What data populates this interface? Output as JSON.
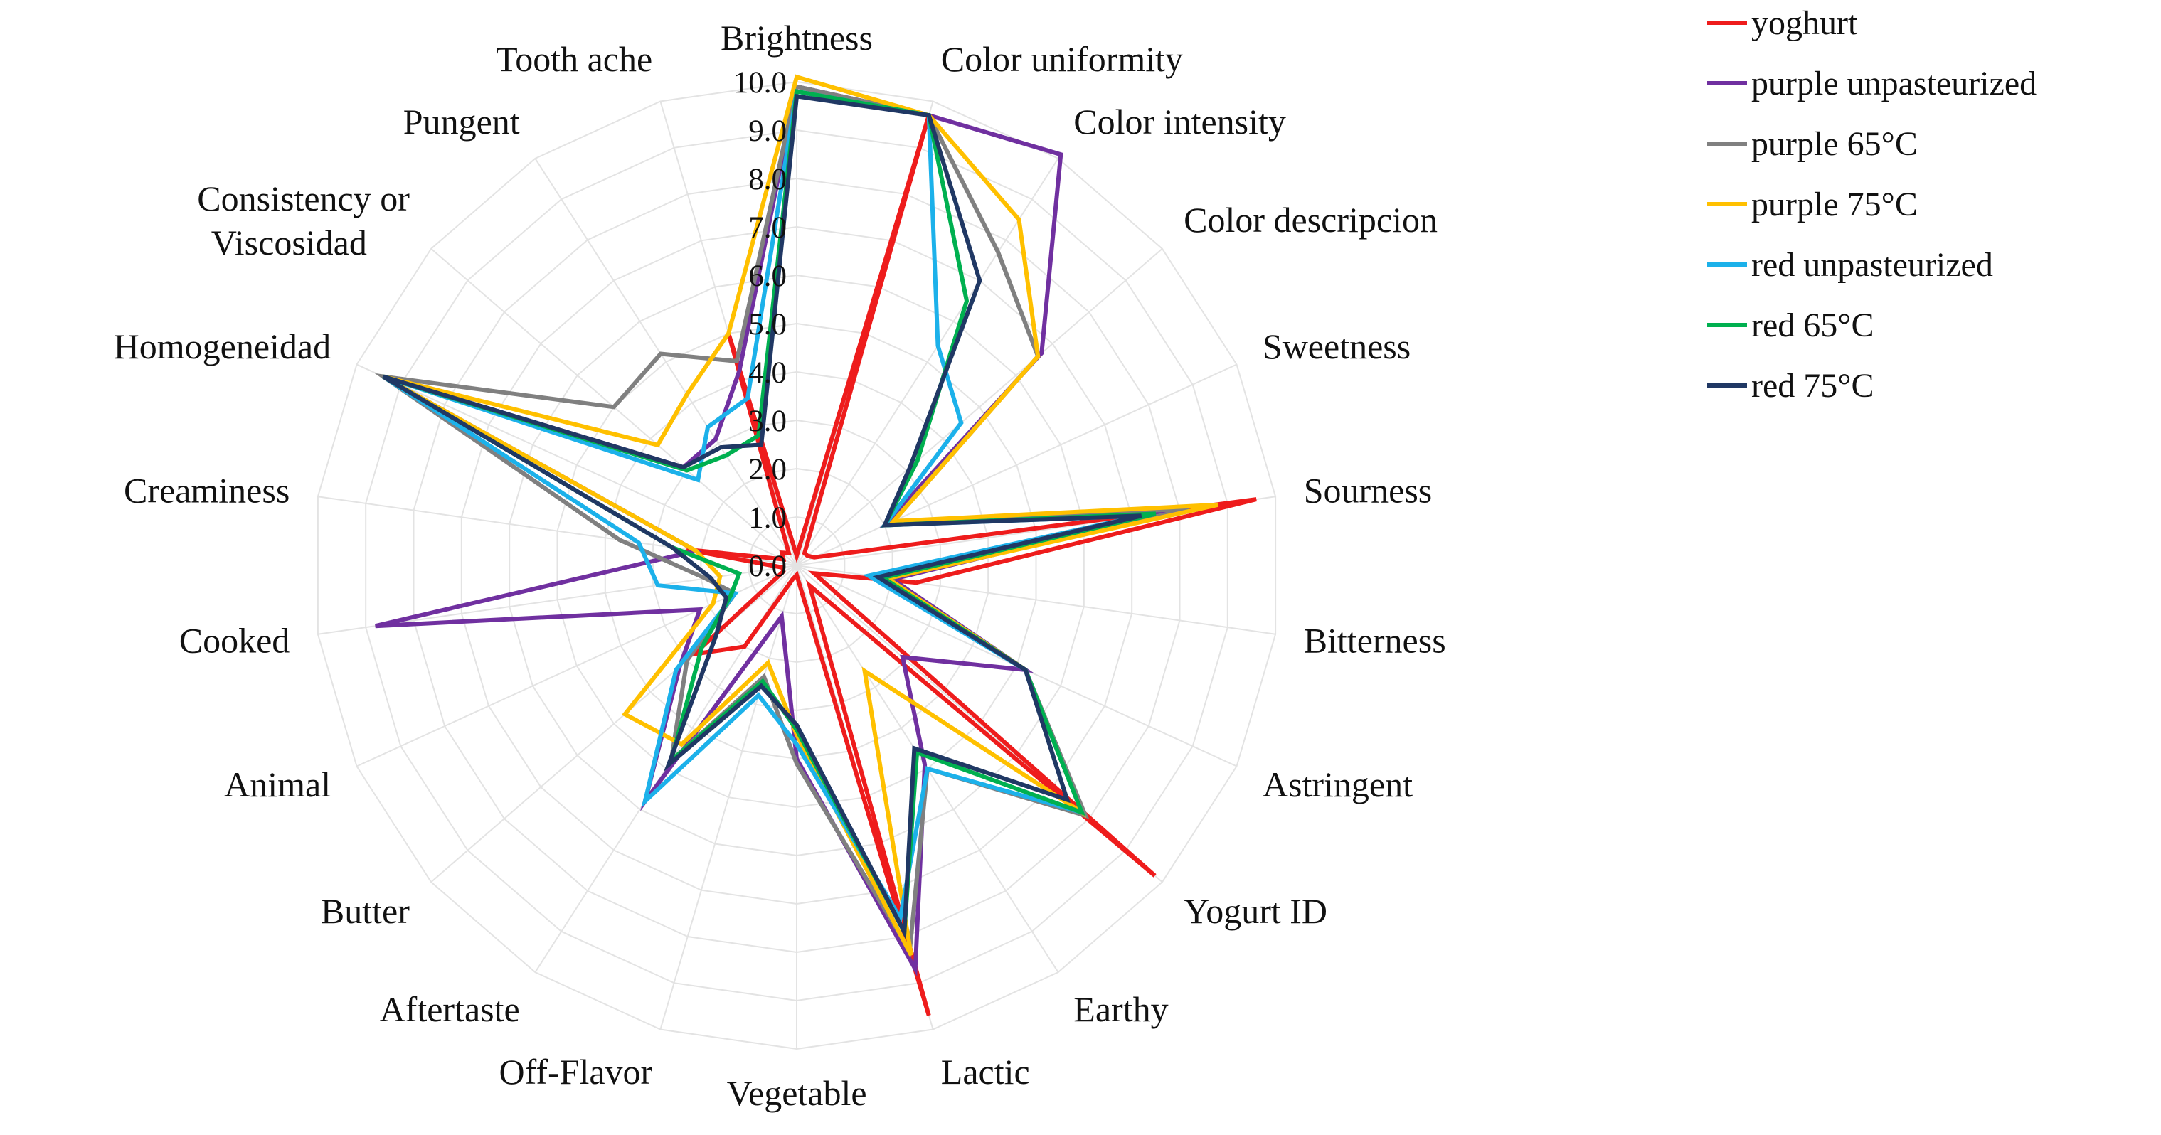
{
  "chart_data": {
    "type": "radar",
    "title": "",
    "r_range": [
      0,
      10
    ],
    "r_ticks": [
      "0.0",
      "1.0",
      "2.0",
      "3.0",
      "4.0",
      "5.0",
      "6.0",
      "7.0",
      "8.0",
      "9.0",
      "10.0"
    ],
    "grid": true,
    "legend_position": "top-right",
    "categories": [
      "Brightness",
      "Color uniformity",
      "Color intensity",
      "Color descripcion",
      "Sweetness",
      "Sourness",
      "Bitterness",
      "Astringent",
      "Yogurt ID",
      "Earthy",
      "Lactic",
      "Vegetable",
      "Off-Flavor",
      "Aftertaste",
      "Butter",
      "Animal",
      "Cooked",
      "Creaminess",
      "Homogeneidad",
      "Consistency or Viscosidad",
      "Pungent",
      "Tooth ache"
    ],
    "series": [
      {
        "name": "yoghurt",
        "color": "#ee1c1c",
        "values": [
          0.2,
          9.7,
          0.3,
          0.3,
          0.4,
          9.6,
          2.5,
          0.4,
          9.8,
          0.5,
          9.7,
          0.2,
          0.3,
          2.0,
          2.8,
          0.3,
          0.3,
          2.3,
          0.3,
          0.4,
          0.3,
          5.0
        ]
      },
      {
        "name": "purple unpasteurized",
        "color": "#7030a0",
        "values": [
          9.9,
          9.7,
          10.1,
          6.7,
          2.0,
          7.9,
          2.0,
          5.2,
          2.9,
          4.9,
          8.7,
          4.0,
          1.1,
          5.8,
          3.2,
          2.2,
          8.8,
          2.1,
          9.4,
          3.1,
          3.1,
          4.2
        ]
      },
      {
        "name": "purple 65°C",
        "color": "#808080",
        "values": [
          9.9,
          9.7,
          7.7,
          6.6,
          2.2,
          8.2,
          1.9,
          5.2,
          7.9,
          5.0,
          8.3,
          4.1,
          2.4,
          4.8,
          3.0,
          1.4,
          1.9,
          3.7,
          9.4,
          5.0,
          5.2,
          4.4
        ]
      },
      {
        "name": "purple 75°C",
        "color": "#ffc000",
        "values": [
          10.1,
          9.7,
          8.5,
          6.6,
          2.2,
          8.8,
          1.9,
          5.2,
          7.8,
          2.6,
          8.4,
          3.5,
          2.1,
          4.4,
          4.7,
          1.9,
          1.6,
          2.1,
          9.4,
          3.8,
          4.2,
          5.0
        ]
      },
      {
        "name": "red unpasteurized",
        "color": "#1cb1ea",
        "values": [
          9.8,
          9.7,
          5.4,
          4.5,
          2.0,
          7.2,
          1.5,
          5.2,
          7.8,
          5.0,
          7.6,
          3.7,
          2.8,
          5.8,
          3.3,
          1.4,
          2.9,
          3.3,
          9.4,
          2.7,
          3.4,
          3.6
        ]
      },
      {
        "name": "red 65°C",
        "color": "#00b050",
        "values": [
          9.8,
          9.7,
          6.5,
          3.3,
          2.0,
          7.5,
          1.8,
          5.2,
          7.8,
          4.6,
          7.9,
          3.4,
          2.5,
          4.8,
          2.6,
          1.5,
          1.2,
          2.6,
          9.4,
          3.0,
          2.7,
          2.8
        ]
      },
      {
        "name": "red 75°C",
        "color": "#203864",
        "values": [
          9.7,
          9.7,
          7.0,
          3.1,
          2.0,
          7.2,
          1.7,
          5.2,
          7.4,
          4.5,
          7.9,
          3.3,
          2.6,
          4.9,
          2.2,
          1.6,
          1.8,
          2.6,
          9.4,
          3.1,
          2.9,
          2.6
        ]
      }
    ]
  }
}
